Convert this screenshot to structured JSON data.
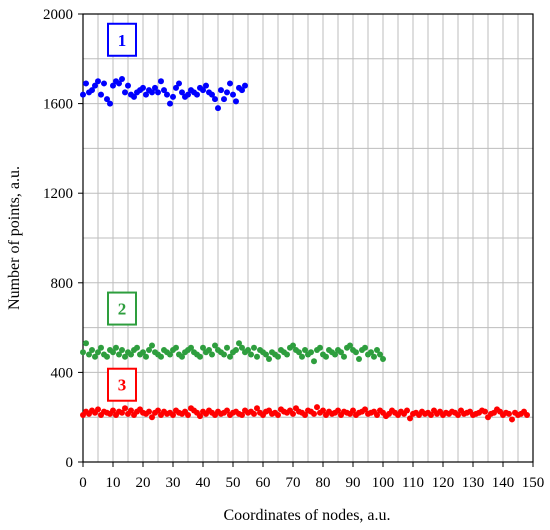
{
  "chart_data": {
    "type": "scatter",
    "title": "",
    "xlabel": "Coordinates of nodes, a.u.",
    "ylabel": "Number of points, a.u.",
    "xlim": [
      0,
      150
    ],
    "ylim": [
      0,
      2000
    ],
    "x_ticks": [
      "0",
      "10",
      "20",
      "30",
      "40",
      "50",
      "60",
      "70",
      "80",
      "90",
      "100",
      "110",
      "120",
      "130",
      "140",
      "150"
    ],
    "y_ticks": [
      "0",
      "400",
      "800",
      "1200",
      "1600",
      "2000"
    ],
    "grid": true,
    "legend": "none",
    "series": [
      {
        "name": "1",
        "color": "#0000ff",
        "box_label": "1",
        "x": [
          0,
          1,
          2,
          3,
          4,
          5,
          6,
          7,
          8,
          9,
          10,
          11,
          12,
          13,
          14,
          15,
          16,
          17,
          18,
          19,
          20,
          21,
          22,
          23,
          24,
          25,
          26,
          27,
          28,
          29,
          30,
          31,
          32,
          33,
          34,
          35,
          36,
          37,
          38,
          39,
          40,
          41,
          42,
          43,
          44,
          45,
          46,
          47,
          48,
          49,
          50,
          51,
          52,
          53,
          54
        ],
        "y": [
          1640,
          1690,
          1650,
          1660,
          1680,
          1700,
          1640,
          1690,
          1620,
          1600,
          1680,
          1700,
          1690,
          1710,
          1650,
          1680,
          1640,
          1630,
          1650,
          1660,
          1670,
          1640,
          1660,
          1650,
          1670,
          1650,
          1700,
          1660,
          1640,
          1600,
          1630,
          1670,
          1690,
          1650,
          1630,
          1640,
          1660,
          1650,
          1640,
          1670,
          1660,
          1680,
          1650,
          1640,
          1620,
          1580,
          1660,
          1620,
          1650,
          1690,
          1640,
          1610,
          1670,
          1660,
          1680
        ]
      },
      {
        "name": "2",
        "color": "#2e9e3e",
        "box_label": "2",
        "x": [
          0,
          1,
          2,
          3,
          4,
          5,
          6,
          7,
          8,
          9,
          10,
          11,
          12,
          13,
          14,
          15,
          16,
          17,
          18,
          19,
          20,
          21,
          22,
          23,
          24,
          25,
          26,
          27,
          28,
          29,
          30,
          31,
          32,
          33,
          34,
          35,
          36,
          37,
          38,
          39,
          40,
          41,
          42,
          43,
          44,
          45,
          46,
          47,
          48,
          49,
          50,
          51,
          52,
          53,
          54,
          55,
          56,
          57,
          58,
          59,
          60,
          61,
          62,
          63,
          64,
          65,
          66,
          67,
          68,
          69,
          70,
          71,
          72,
          73,
          74,
          75,
          76,
          77,
          78,
          79,
          80,
          81,
          82,
          83,
          84,
          85,
          86,
          87,
          88,
          89,
          90,
          91,
          92,
          93,
          94,
          95,
          96,
          97,
          98,
          99,
          100
        ],
        "y": [
          490,
          530,
          480,
          500,
          470,
          490,
          510,
          480,
          470,
          500,
          490,
          510,
          480,
          500,
          470,
          490,
          480,
          500,
          510,
          480,
          490,
          470,
          500,
          520,
          490,
          480,
          470,
          500,
          490,
          480,
          500,
          510,
          480,
          470,
          490,
          500,
          510,
          490,
          480,
          470,
          510,
          490,
          500,
          480,
          520,
          500,
          490,
          480,
          510,
          470,
          490,
          500,
          530,
          510,
          490,
          500,
          480,
          510,
          470,
          500,
          490,
          480,
          460,
          490,
          480,
          470,
          500,
          490,
          480,
          510,
          520,
          500,
          490,
          470,
          500,
          480,
          490,
          450,
          500,
          510,
          480,
          470,
          500,
          490,
          480,
          500,
          490,
          470,
          510,
          520,
          500,
          490,
          460,
          500,
          510,
          480,
          490,
          470,
          500,
          480,
          460
        ]
      },
      {
        "name": "3",
        "color": "#ff0000",
        "box_label": "3",
        "x": [
          0,
          1,
          2,
          3,
          4,
          5,
          6,
          7,
          8,
          9,
          10,
          11,
          12,
          13,
          14,
          15,
          16,
          17,
          18,
          19,
          20,
          21,
          22,
          23,
          24,
          25,
          26,
          27,
          28,
          29,
          30,
          31,
          32,
          33,
          34,
          35,
          36,
          37,
          38,
          39,
          40,
          41,
          42,
          43,
          44,
          45,
          46,
          47,
          48,
          49,
          50,
          51,
          52,
          53,
          54,
          55,
          56,
          57,
          58,
          59,
          60,
          61,
          62,
          63,
          64,
          65,
          66,
          67,
          68,
          69,
          70,
          71,
          72,
          73,
          74,
          75,
          76,
          77,
          78,
          79,
          80,
          81,
          82,
          83,
          84,
          85,
          86,
          87,
          88,
          89,
          90,
          91,
          92,
          93,
          94,
          95,
          96,
          97,
          98,
          99,
          100,
          101,
          102,
          103,
          104,
          105,
          106,
          107,
          108,
          109,
          110,
          111,
          112,
          113,
          114,
          115,
          116,
          117,
          118,
          119,
          120,
          121,
          122,
          123,
          124,
          125,
          126,
          127,
          128,
          129,
          130,
          131,
          132,
          133,
          134,
          135,
          136,
          137,
          138,
          139,
          140,
          141,
          142,
          143,
          144,
          145,
          146,
          147,
          148
        ],
        "y": [
          210,
          225,
          215,
          230,
          220,
          235,
          210,
          225,
          220,
          215,
          230,
          210,
          225,
          220,
          240,
          215,
          230,
          210,
          225,
          235,
          220,
          215,
          225,
          200,
          220,
          230,
          210,
          225,
          215,
          220,
          210,
          230,
          220,
          215,
          225,
          210,
          240,
          230,
          220,
          205,
          225,
          215,
          230,
          220,
          210,
          225,
          215,
          220,
          230,
          210,
          220,
          225,
          215,
          210,
          230,
          220,
          225,
          215,
          240,
          220,
          210,
          225,
          230,
          215,
          220,
          210,
          235,
          225,
          220,
          230,
          215,
          240,
          225,
          220,
          210,
          230,
          225,
          215,
          245,
          220,
          230,
          210,
          225,
          215,
          220,
          230,
          210,
          225,
          220,
          215,
          230,
          210,
          220,
          225,
          235,
          215,
          220,
          225,
          210,
          230,
          220,
          205,
          215,
          230,
          220,
          210,
          225,
          215,
          230,
          195,
          215,
          220,
          210,
          225,
          215,
          220,
          210,
          230,
          215,
          225,
          210,
          220,
          215,
          225,
          220,
          210,
          230,
          215,
          220,
          225,
          210,
          215,
          220,
          230,
          225,
          200,
          215,
          220,
          235,
          225,
          210,
          220,
          215,
          190,
          220,
          210,
          215,
          225,
          210
        ]
      }
    ]
  }
}
